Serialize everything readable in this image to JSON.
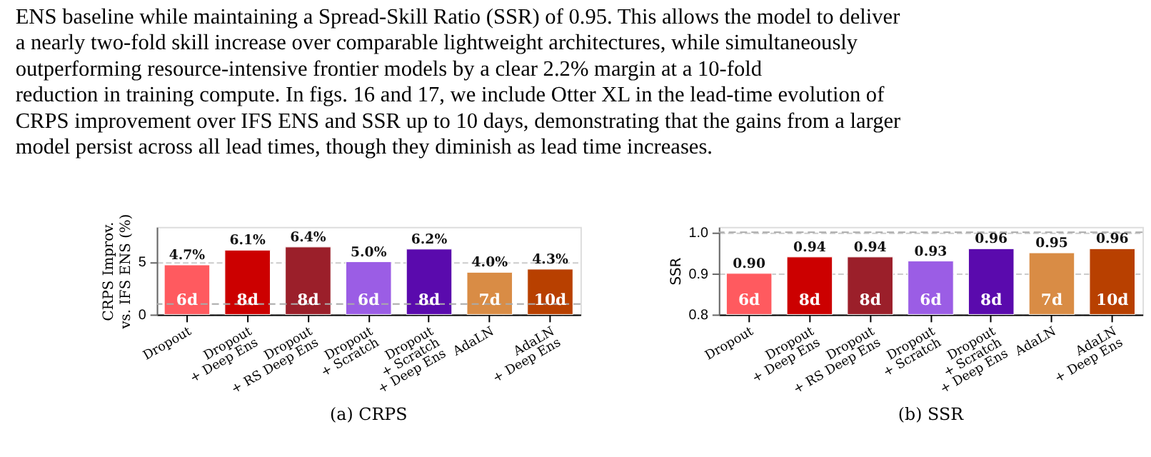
{
  "chart_data": [
    {
      "type": "bar",
      "title": "(a) CRPS",
      "ylabel": "CRPS Improv.\nvs. IFS ENS (%)",
      "categories": [
        "Dropout",
        "Dropout\n+ Deep Ens",
        "Dropout\n+ RS Deep Ens",
        "Dropout\n+ Scratch",
        "Dropout\n+ Scratch\n+ Deep Ens",
        "AdaLN",
        "AdaLN\n+ Deep Ens"
      ],
      "values": [
        4.7,
        6.1,
        6.4,
        5.0,
        6.2,
        4.0,
        4.3
      ],
      "value_labels": [
        "4.7%",
        "6.1%",
        "6.4%",
        "5.0%",
        "6.2%",
        "4.0%",
        "4.3%"
      ],
      "colors": [
        "#ff5a5f",
        "#cc0000",
        "#9b1f2a",
        "#9b5de5",
        "#5a0aad",
        "#d98c45",
        "#b84000"
      ],
      "ylim": [
        0,
        8.3
      ],
      "yticks": [
        0,
        5
      ],
      "grid": "y",
      "ref_lines": [
        {
          "axis": "y",
          "value": 1,
          "line_style": "dashed",
          "color": "#aaaaaa"
        }
      ],
      "annotations": [
        "ENS baseline while maintaining a Spread-Skill Ratio (SSR) of 0.95. This allows the model to deliver\na nearly two-fold skill increase over comparable lightweight architectures, while simultaneously\noutperforming resource-intensive frontier models by a clear 2.2% margin at a 10-fold\nreduction in training compute. In figs. 16 and 17, we include Otter XL in the lead-time evolution of\nCRPS improvement over IFS ENS and SSR up to 10 days, demonstrating that the gains from a larger\nmodel persist across all lead times, though they diminish as lead time increases.",
        {
          "text": "6d",
          "x": "Dropout"
        },
        {
          "text": "8d",
          "x": "Dropout\n+ Deep Ens"
        },
        {
          "text": "8d",
          "x": "Dropout\n+ RS Deep Ens"
        },
        {
          "text": "6d",
          "x": "Dropout\n+ Scratch"
        },
        {
          "text": "8d",
          "x": "Dropout\n+ Scratch\n+ Deep Ens"
        },
        {
          "text": "7d",
          "x": "AdaLN"
        },
        {
          "text": "10d",
          "x": "AdaLN\n+ Deep Ens"
        }
      ]
    },
    {
      "type": "bar",
      "title": "(b) SSR",
      "ylabel": "SSR",
      "categories": [
        "Dropout",
        "Dropout\n+ Deep Ens",
        "Dropout\n+ RS Deep Ens",
        "Dropout\n+ Scratch",
        "Dropout\n+ Scratch\n+ Deep Ens",
        "AdaLN",
        "AdaLN\n+ Deep Ens"
      ],
      "values": [
        0.9,
        0.94,
        0.94,
        0.93,
        0.96,
        0.95,
        0.96
      ],
      "value_labels": [
        "0.90",
        "0.94",
        "0.94",
        "0.93",
        "0.96",
        "0.95",
        "0.96"
      ],
      "colors": [
        "#ff5a5f",
        "#cc0000",
        "#9b1f2a",
        "#9b5de5",
        "#5a0aad",
        "#d98c45",
        "#b84000"
      ],
      "ylim": [
        0.8,
        1.013
      ],
      "yticks": [
        0.8,
        0.9,
        {
          "value": 1.0,
          "label": "1.0"
        }
      ],
      "grid": "y",
      "ref_lines": [
        {
          "axis": "y",
          "value": 1.0,
          "line_style": "dashed",
          "color": "#aaaaaa"
        }
      ],
      "annotations": [
        {
          "text": "6d",
          "x": "Dropout"
        },
        {
          "text": "8d",
          "x": "Dropout\n+ Deep Ens"
        },
        {
          "text": "8d",
          "x": "Dropout\n+ RS Deep Ens"
        },
        {
          "text": "6d",
          "x": "Dropout\n+ Scratch"
        },
        {
          "text": "8d",
          "x": "Dropout\n+ Scratch\n+ Deep Ens"
        },
        {
          "text": "7d",
          "x": "AdaLN"
        },
        {
          "text": "10d",
          "x": "AdaLN\n+ Deep Ens"
        }
      ]
    }
  ]
}
